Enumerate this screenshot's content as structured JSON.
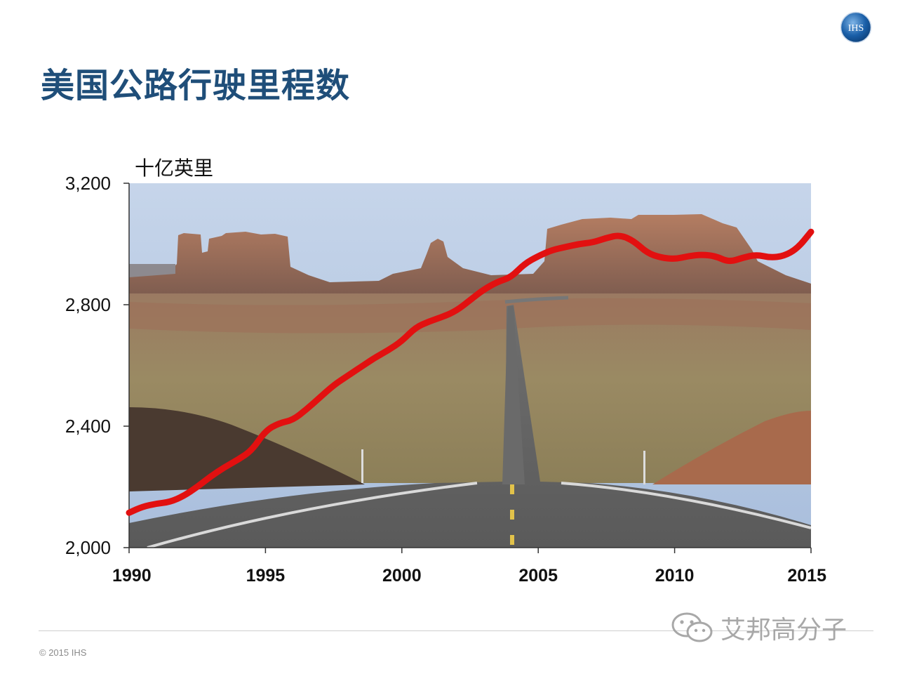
{
  "slide": {
    "title": "美国公路行驶里程数",
    "logo_text": "IHS",
    "copyright": "© 2015 IHS",
    "watermark": "艾邦高分子",
    "colors": {
      "title": "#1f4e79",
      "line": "#e21010",
      "logo_blue": "#1a5fa8"
    }
  },
  "chart_data": {
    "type": "line",
    "ylabel": "十亿英里",
    "ylim": [
      2000,
      3200
    ],
    "yticks": [
      2000,
      2400,
      2800,
      3200
    ],
    "ytick_labels": [
      "2,000",
      "2,400",
      "2,800",
      "3,200"
    ],
    "xlim": [
      1990,
      2015
    ],
    "xticks": [
      1990,
      1995,
      2000,
      2005,
      2010,
      2015
    ],
    "xtick_labels": [
      "1990",
      "1995",
      "2000",
      "2005",
      "2010",
      "2015"
    ],
    "background": "desert-road-photo",
    "series": [
      {
        "color": "#e21010",
        "x": [
          1990,
          1990.5,
          1991,
          1991.5,
          1992,
          1992.5,
          1993,
          1993.5,
          1994,
          1994.5,
          1995,
          1995.5,
          1996,
          1996.5,
          1997,
          1997.5,
          1998,
          1998.5,
          1999,
          1999.5,
          2000,
          2000.5,
          2001,
          2001.5,
          2002,
          2002.5,
          2003,
          2003.5,
          2004,
          2004.5,
          2005,
          2005.5,
          2006,
          2006.5,
          2007,
          2007.5,
          2008,
          2008.5,
          2009,
          2009.5,
          2010,
          2010.5,
          2011,
          2011.5,
          2012,
          2012.5,
          2013,
          2013.5,
          2014,
          2014.5,
          2015
        ],
        "y": [
          2115,
          2135,
          2145,
          2150,
          2170,
          2200,
          2235,
          2265,
          2290,
          2320,
          2385,
          2410,
          2420,
          2455,
          2495,
          2535,
          2565,
          2595,
          2625,
          2650,
          2680,
          2725,
          2745,
          2760,
          2780,
          2815,
          2850,
          2875,
          2890,
          2935,
          2960,
          2980,
          2990,
          3000,
          3005,
          3020,
          3030,
          3010,
          2970,
          2955,
          2950,
          2960,
          2965,
          2960,
          2940,
          2955,
          2965,
          2955,
          2960,
          2985,
          3040
        ]
      }
    ]
  }
}
